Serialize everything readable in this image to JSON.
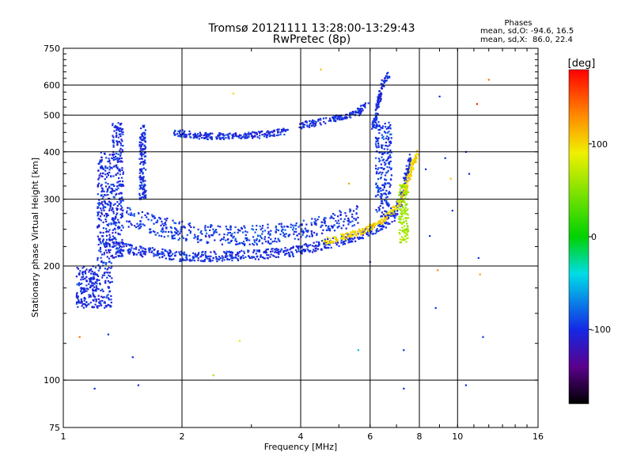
{
  "chart_data": {
    "type": "scatter",
    "title": "Tromsø 20121111 13:28:00-13:29:43",
    "subtitle": "RwPretec (8p)",
    "xlabel": "Frequency [MHz]",
    "ylabel": "Stationary phase Virtual Height [km]",
    "x_scale": "log",
    "y_scale": "log",
    "xlim": [
      1,
      16
    ],
    "ylim": [
      75,
      750
    ],
    "x_ticks": [
      1,
      2,
      4,
      6,
      8,
      10,
      16
    ],
    "x_tick_labels": [
      "1",
      "2",
      "4",
      "6",
      "8",
      "10",
      "16"
    ],
    "y_ticks": [
      75,
      100,
      200,
      300,
      400,
      500,
      600,
      750
    ],
    "y_tick_labels": [
      "75",
      "100",
      "200",
      "300",
      "400",
      "500",
      "600",
      "750"
    ],
    "grid": true,
    "stats": {
      "heading": "Phases",
      "line1": "mean, sd,O: -94.6, 16.5",
      "line2": "mean, sd,X:  86.0, 22.4"
    },
    "colorbar": {
      "label": "[deg]",
      "range": [
        -180,
        180
      ],
      "ticks": [
        100,
        0,
        -100
      ],
      "tick_labels": [
        "100",
        "0",
        "-100"
      ],
      "colormap": "rainbow"
    },
    "traces": [
      {
        "kind": "band",
        "x0": 1.08,
        "x1": 1.22,
        "y0": 155,
        "y1": 200,
        "phase": -100
      },
      {
        "kind": "band",
        "x0": 1.22,
        "x1": 1.33,
        "y0": 155,
        "y1": 400,
        "phase": -100
      },
      {
        "kind": "band",
        "x0": 1.33,
        "x1": 1.42,
        "y0": 210,
        "y1": 480,
        "phase": -100
      },
      {
        "kind": "curve",
        "points": [
          [
            1.35,
            225
          ],
          [
            1.6,
            218
          ],
          [
            2.0,
            212
          ],
          [
            2.5,
            212
          ],
          [
            3.0,
            214
          ],
          [
            3.5,
            216
          ],
          [
            4.0,
            220
          ],
          [
            4.6,
            228
          ],
          [
            5.2,
            235
          ],
          [
            5.8,
            244
          ],
          [
            6.4,
            255
          ],
          [
            6.9,
            272
          ],
          [
            7.2,
            300
          ],
          [
            7.4,
            340
          ],
          [
            7.6,
            390
          ]
        ],
        "spread": 0.03,
        "phase": -100
      },
      {
        "kind": "curve",
        "points": [
          [
            1.45,
            270
          ],
          [
            1.8,
            252
          ],
          [
            2.2,
            243
          ],
          [
            2.8,
            240
          ],
          [
            3.4,
            243
          ],
          [
            4.0,
            250
          ],
          [
            4.6,
            258
          ],
          [
            5.2,
            266
          ],
          [
            5.6,
            272
          ]
        ],
        "spread": 0.06,
        "phase": -95
      },
      {
        "kind": "curve",
        "points": [
          [
            4.6,
            232
          ],
          [
            5.2,
            240
          ],
          [
            5.8,
            248
          ],
          [
            6.4,
            262
          ],
          [
            7.0,
            285
          ],
          [
            7.4,
            320
          ],
          [
            7.7,
            370
          ],
          [
            7.9,
            400
          ]
        ],
        "spread": 0.02,
        "phase": 100
      },
      {
        "kind": "curve",
        "points": [
          [
            1.9,
            450
          ],
          [
            2.3,
            440
          ],
          [
            2.8,
            440
          ],
          [
            3.3,
            445
          ],
          [
            3.7,
            455
          ]
        ],
        "spread": 0.02,
        "phase": -100
      },
      {
        "kind": "curve",
        "points": [
          [
            4.0,
            470
          ],
          [
            4.6,
            482
          ],
          [
            5.1,
            495
          ],
          [
            5.6,
            510
          ],
          [
            5.9,
            540
          ]
        ],
        "spread": 0.02,
        "phase": -100
      },
      {
        "kind": "curve",
        "points": [
          [
            6.1,
            460
          ],
          [
            6.3,
            540
          ],
          [
            6.5,
            620
          ],
          [
            6.7,
            640
          ]
        ],
        "spread": 0.02,
        "phase": -100
      },
      {
        "kind": "band",
        "x0": 6.2,
        "x1": 6.8,
        "y0": 270,
        "y1": 480,
        "phase": -95
      },
      {
        "kind": "band",
        "x0": 7.1,
        "x1": 7.5,
        "y0": 230,
        "y1": 330,
        "phase": 60
      },
      {
        "kind": "band",
        "x0": 1.56,
        "x1": 1.62,
        "y0": 300,
        "y1": 470,
        "phase": -100
      }
    ],
    "stray_points": [
      [
        1.2,
        95,
        -100
      ],
      [
        1.55,
        97,
        -100
      ],
      [
        1.5,
        115,
        -100
      ],
      [
        1.1,
        130,
        140
      ],
      [
        1.3,
        132,
        -100
      ],
      [
        2.4,
        103,
        60
      ],
      [
        2.8,
        127,
        80
      ],
      [
        5.6,
        120,
        -50
      ],
      [
        7.3,
        120,
        -100
      ],
      [
        7.3,
        95,
        -100
      ],
      [
        10.5,
        97,
        -100
      ],
      [
        11.3,
        210,
        -100
      ],
      [
        11.6,
        130,
        -100
      ],
      [
        9.0,
        560,
        -100
      ],
      [
        11.2,
        535,
        170
      ],
      [
        12.0,
        620,
        140
      ],
      [
        2.7,
        570,
        100
      ],
      [
        4.5,
        660,
        110
      ],
      [
        9.3,
        385,
        -100
      ],
      [
        8.3,
        360,
        -100
      ],
      [
        8.5,
        240,
        -100
      ],
      [
        10.7,
        350,
        -100
      ],
      [
        9.7,
        280,
        -100
      ],
      [
        8.9,
        195,
        130
      ],
      [
        9.6,
        340,
        110
      ],
      [
        10.5,
        400,
        -100
      ],
      [
        11.4,
        190,
        120
      ],
      [
        6.0,
        205,
        -100
      ],
      [
        5.3,
        330,
        120
      ],
      [
        8.8,
        155,
        -100
      ]
    ]
  }
}
